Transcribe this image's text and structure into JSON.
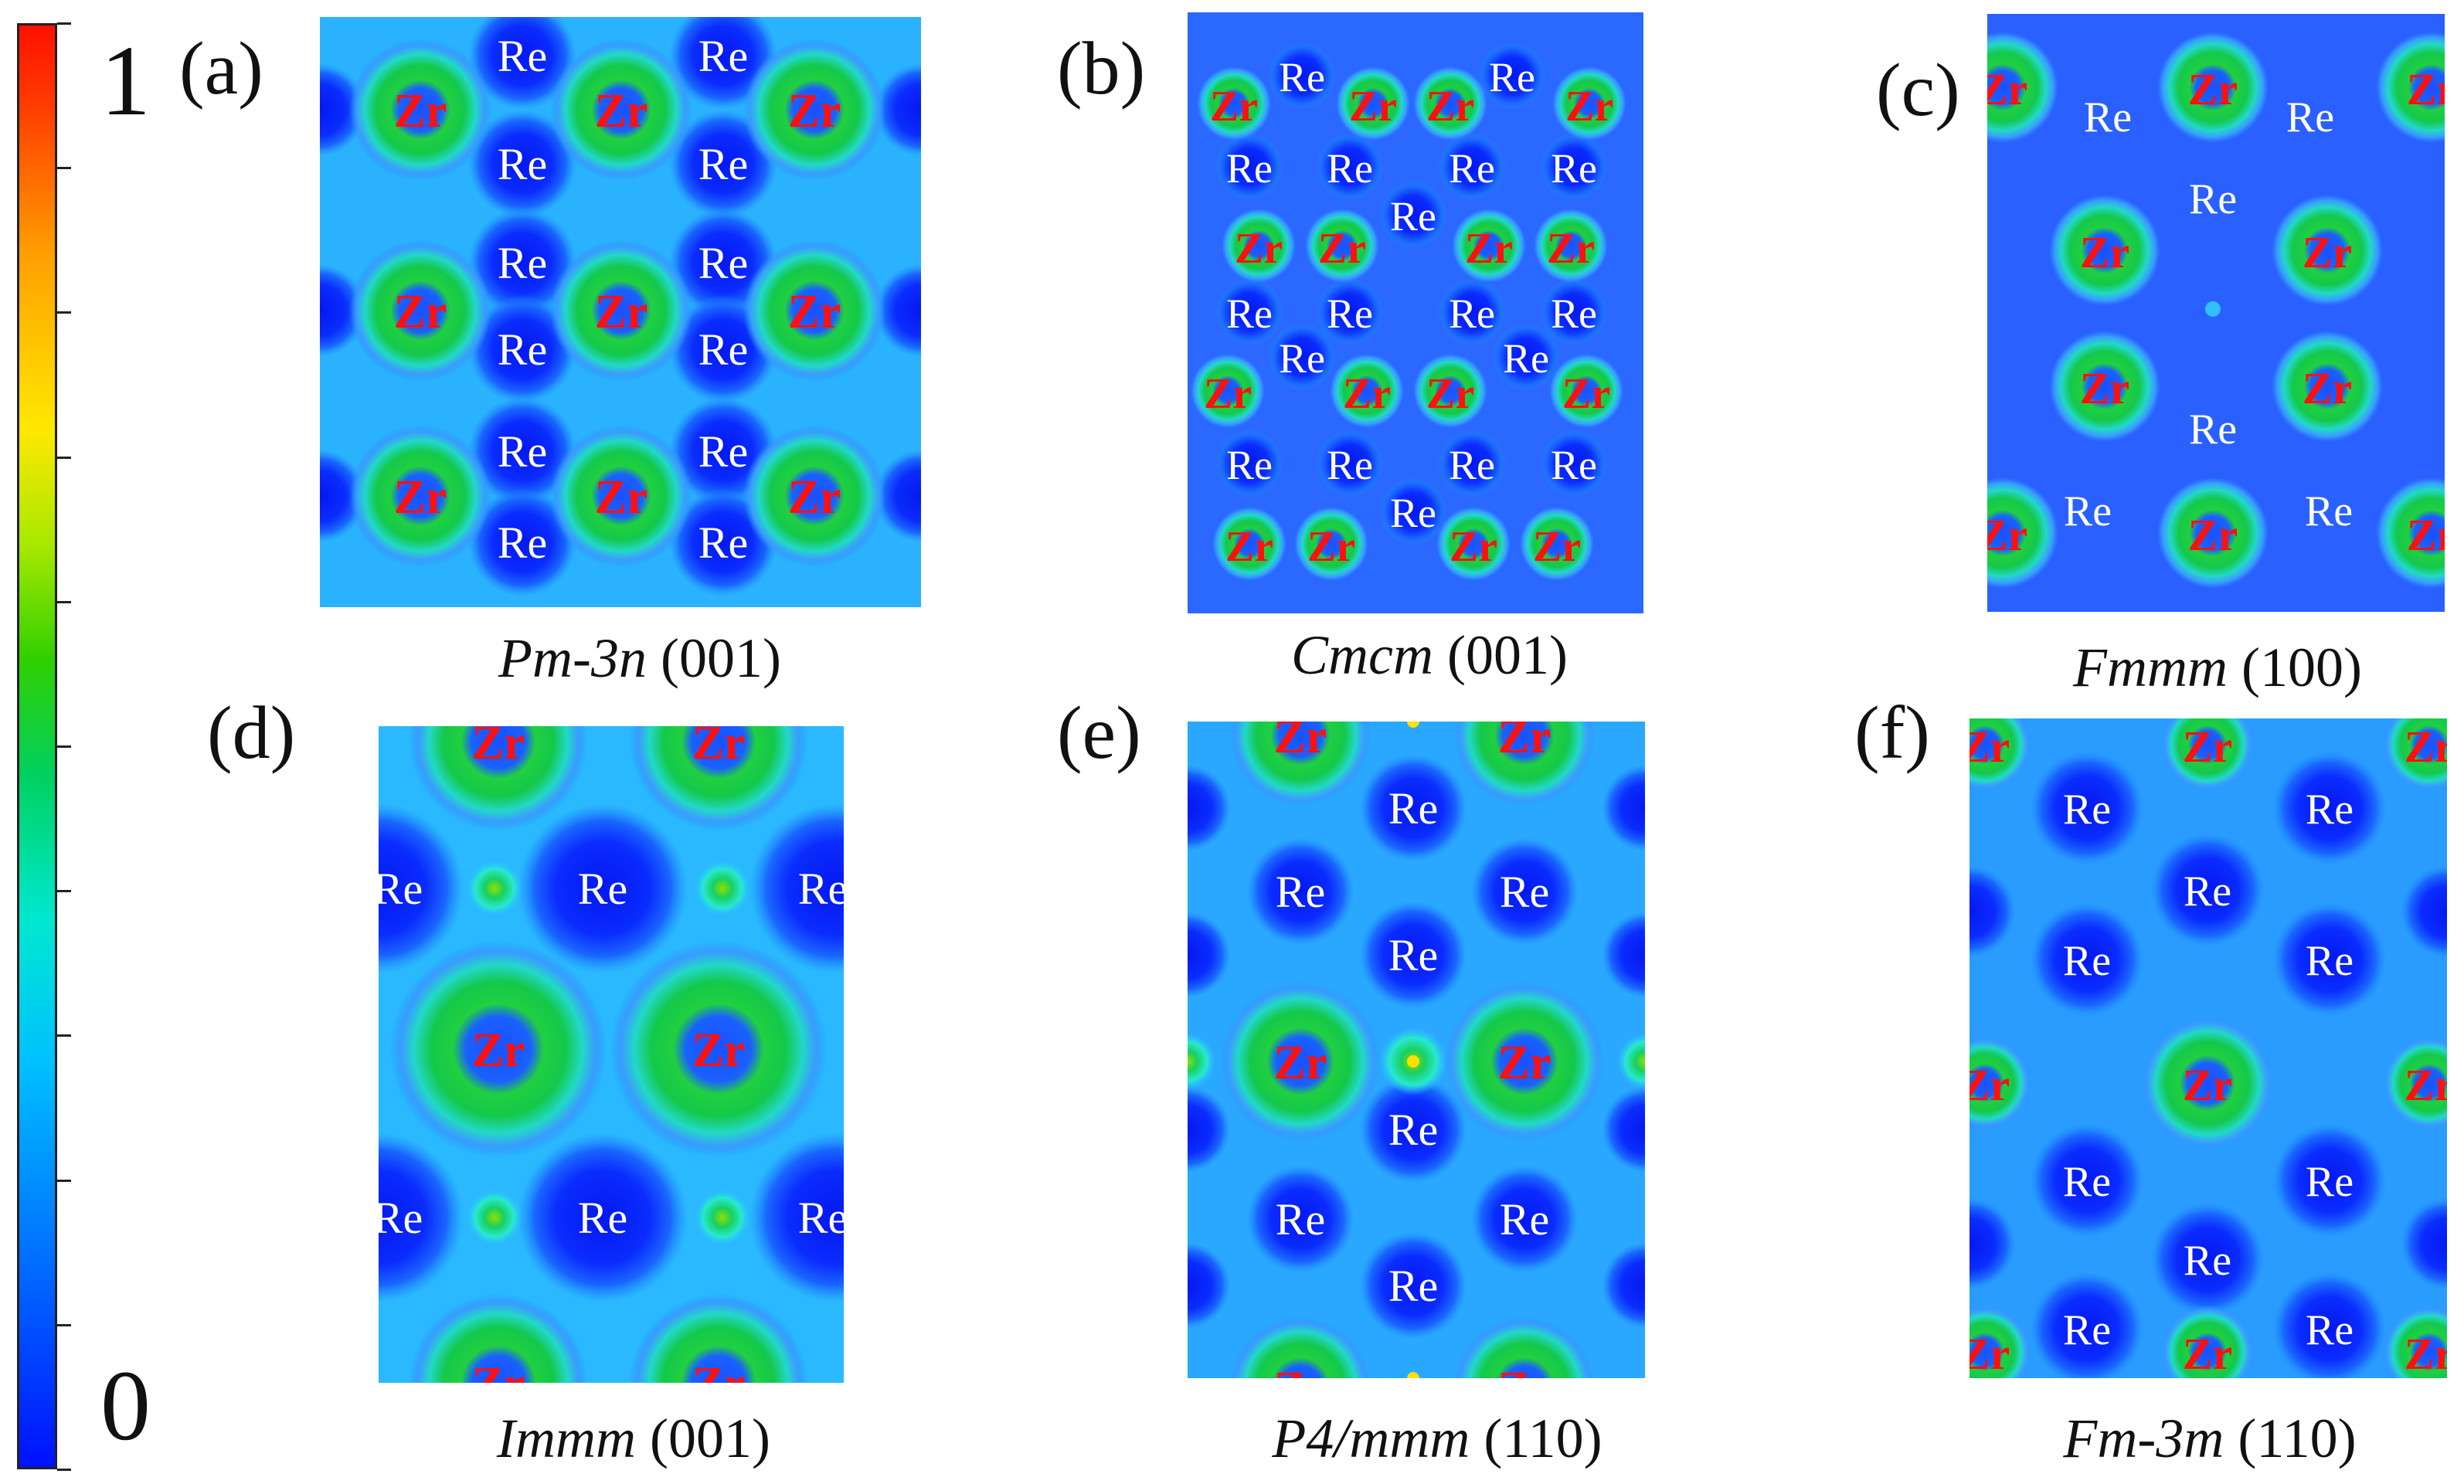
{
  "colorbar": {
    "max_label": "1",
    "min_label": "0",
    "ticks": [
      0,
      0.1,
      0.2,
      0.3,
      0.4,
      0.5,
      0.6,
      0.7,
      0.8,
      0.9,
      1.0
    ],
    "colors": [
      "#0010ff",
      "#00c0ff",
      "#00e0c0",
      "#00c800",
      "#8fe000",
      "#ffe000",
      "#ff9000",
      "#ff1000"
    ]
  },
  "colors": {
    "background": "#1f8fff",
    "zr_label": "#ff1010",
    "re_label": "#ffffff",
    "low": "#0a2cff",
    "high": "#12c94a"
  },
  "panels": [
    {
      "id": "a",
      "label": "(a)",
      "caption_italic": "Pm-3n",
      "caption_plane": " (001)"
    },
    {
      "id": "b",
      "label": "(b)",
      "caption_italic": "Cmcm",
      "caption_plane": " (001)"
    },
    {
      "id": "c",
      "label": "(c)",
      "caption_italic": "Fmmm",
      "caption_plane": " (100)"
    },
    {
      "id": "d",
      "label": "(d)",
      "caption_italic": "Immm",
      "caption_plane": " (001)"
    },
    {
      "id": "e",
      "label": "(e)",
      "caption_italic": "P4/mmm",
      "caption_plane": " (110)"
    },
    {
      "id": "f",
      "label": "(f)",
      "caption_italic": "Fm-3m",
      "caption_plane": " (110)"
    }
  ],
  "atoms": {
    "zr": "Zr",
    "re": "Re"
  }
}
